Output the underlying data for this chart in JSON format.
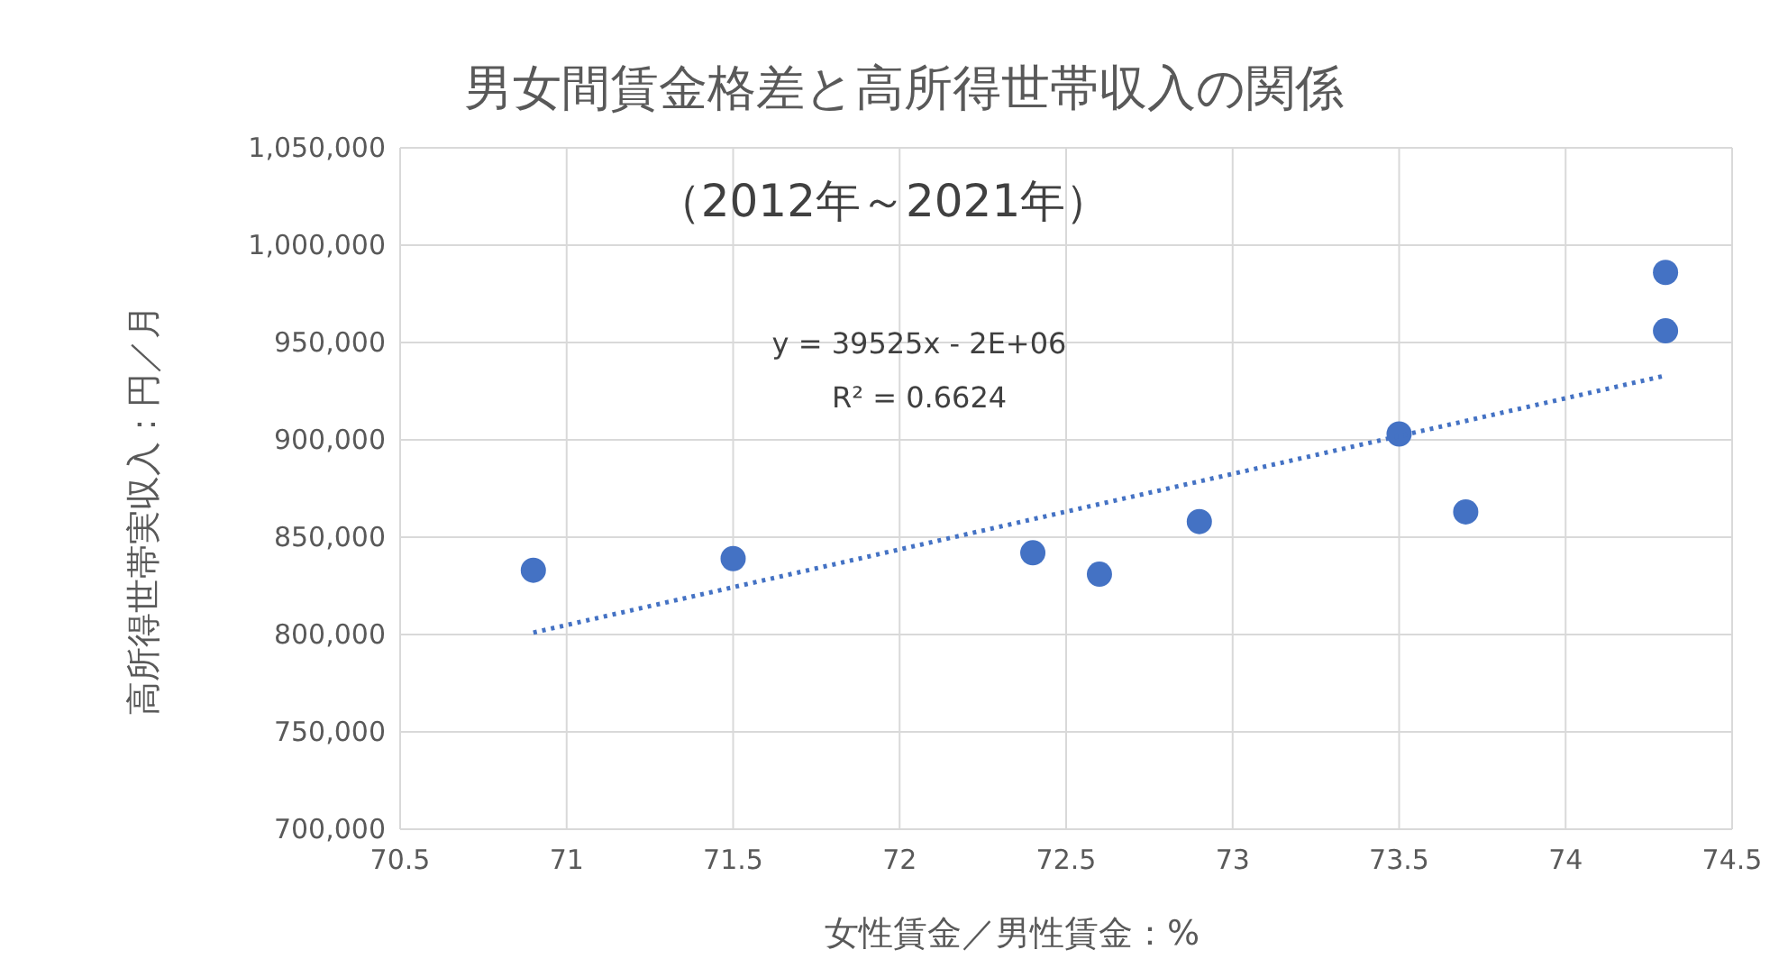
{
  "chart_data": {
    "type": "scatter",
    "title": "男女間賃金格差と高所得世帯収入の関係",
    "subtitle": "（2012年～2021年）",
    "xlabel": "女性賃金／男性賃金：%",
    "ylabel": "高所得世帯実収入：円／月",
    "annotations": [
      "y = 39525x - 2E+06",
      "R² = 0.6624"
    ],
    "xlim": [
      70.5,
      74.5
    ],
    "xticks": [
      70.5,
      71,
      71.5,
      72,
      72.5,
      73,
      73.5,
      74,
      74.5
    ],
    "ylim": [
      700000,
      1050000
    ],
    "yticks": [
      {
        "value": 700000,
        "label": "700,000"
      },
      {
        "value": 750000,
        "label": "750,000"
      },
      {
        "value": 800000,
        "label": "800,000"
      },
      {
        "value": 850000,
        "label": "850,000"
      },
      {
        "value": 900000,
        "label": "900,000"
      },
      {
        "value": 950000,
        "label": "950,000"
      },
      {
        "value": 1000000,
        "label": "1,000,000"
      },
      {
        "value": 1050000,
        "label": "1,050,000"
      }
    ],
    "grid": true,
    "series": [
      {
        "type": "scatter",
        "color": "#4472c4",
        "marker": "circle",
        "x": [
          70.9,
          71.5,
          72.4,
          72.6,
          72.9,
          73.5,
          73.7,
          74.3,
          74.3
        ],
        "values": [
          833000,
          839000,
          842000,
          831000,
          858000,
          903000,
          863000,
          986000,
          956000
        ]
      },
      {
        "type": "line",
        "color": "#4472c4",
        "line_style": "dotted",
        "x": [
          70.9,
          74.3
        ],
        "values": [
          801000,
          933000
        ]
      }
    ]
  }
}
